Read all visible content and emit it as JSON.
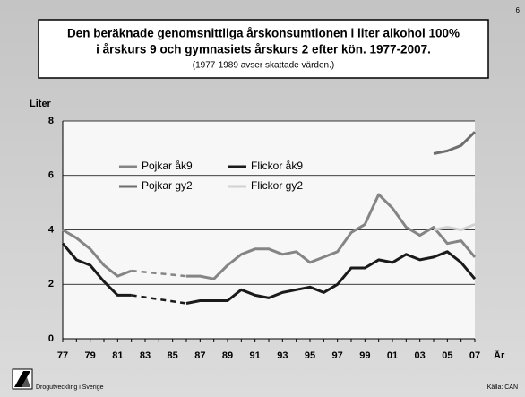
{
  "page_number": "6",
  "chart_data": {
    "type": "line",
    "title": "Den beräknade genomsnittliga årskonsumtionen i liter alkohol 100%",
    "title_line2": "i årskurs 9 och gymnasiets årskurs 2 efter kön. 1977-2007.",
    "subtitle": "(1977-1989 avser skattade värden.)",
    "y_label": "Liter",
    "x_label": "År",
    "categories": [
      "77",
      null,
      "79",
      null,
      "81",
      null,
      "83",
      null,
      "85",
      null,
      "87",
      null,
      "89",
      null,
      "91",
      null,
      "93",
      null,
      "95",
      null,
      "97",
      null,
      "99",
      null,
      "01",
      null,
      "03",
      null,
      "05",
      null,
      "07"
    ],
    "series": [
      {
        "name": "Pojkar åk9",
        "color": "#858585",
        "values": [
          4.0,
          3.7,
          3.3,
          2.7,
          2.3,
          2.5,
          null,
          null,
          null,
          2.3,
          2.3,
          2.2,
          2.7,
          3.1,
          3.3,
          3.3,
          3.1,
          3.2,
          2.8,
          3.0,
          3.2,
          3.9,
          4.2,
          5.3,
          4.8,
          4.1,
          3.8,
          4.1,
          3.5,
          3.6,
          3.0
        ]
      },
      {
        "name": "Flickor åk9",
        "color": "#1a1a1a",
        "values": [
          3.5,
          2.9,
          2.7,
          2.1,
          1.6,
          1.6,
          null,
          null,
          null,
          1.3,
          1.4,
          1.4,
          1.4,
          1.8,
          1.6,
          1.5,
          1.7,
          1.8,
          1.9,
          1.7,
          2.0,
          2.6,
          2.6,
          2.9,
          2.8,
          3.1,
          2.9,
          3.0,
          3.2,
          2.8,
          2.2
        ]
      },
      {
        "name": "Pojkar gy2",
        "color": "#6e6e6e",
        "values": [
          null,
          null,
          null,
          null,
          null,
          null,
          null,
          null,
          null,
          null,
          null,
          null,
          null,
          null,
          null,
          null,
          null,
          null,
          null,
          null,
          null,
          null,
          null,
          null,
          null,
          null,
          null,
          6.8,
          6.9,
          7.1,
          7.6
        ]
      },
      {
        "name": "Flickor gy2",
        "color": "#d2d2d2",
        "values": [
          null,
          null,
          null,
          null,
          null,
          null,
          null,
          null,
          null,
          null,
          null,
          null,
          null,
          null,
          null,
          null,
          null,
          null,
          null,
          null,
          null,
          null,
          null,
          null,
          null,
          null,
          null,
          4.0,
          4.1,
          4.0,
          4.2
        ]
      }
    ],
    "ylim": [
      0,
      8
    ],
    "yticks": [
      0,
      2,
      4,
      6,
      8
    ],
    "grid": true,
    "gap_style": "dashed"
  },
  "footer": {
    "left": "Drogutveckling i Sverige",
    "right": "Källa: CAN"
  }
}
